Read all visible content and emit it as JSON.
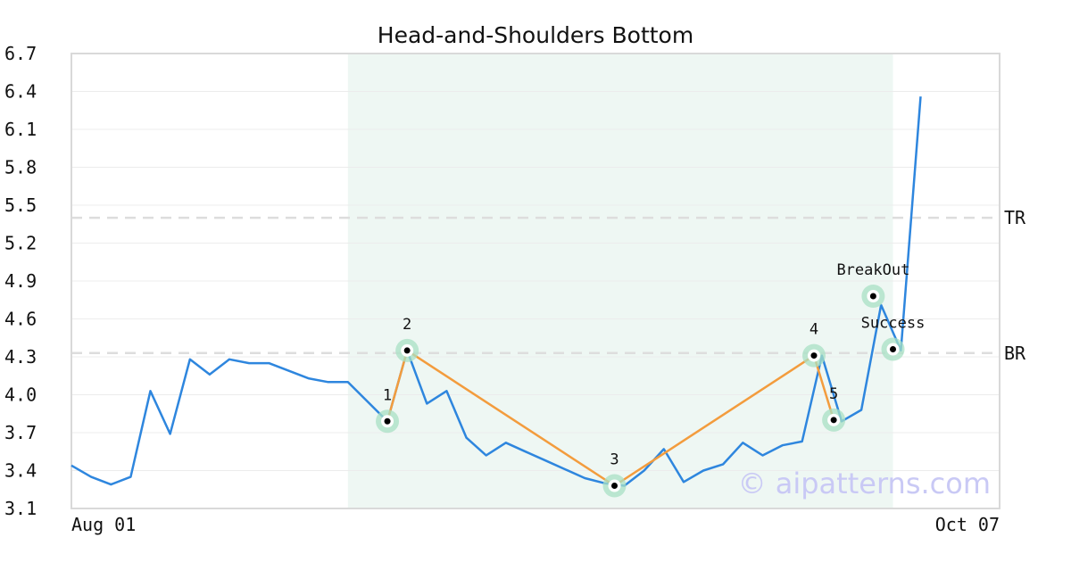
{
  "chart_data": {
    "type": "line",
    "title": "Head-and-Shoulders Bottom",
    "xlabel": "",
    "ylabel": "",
    "x_tick_labels": [
      "Aug 01",
      "Oct 07"
    ],
    "y_ticks": [
      "3.1",
      "3.4",
      "3.7",
      "4.0",
      "4.3",
      "4.6",
      "4.9",
      "5.2",
      "5.5",
      "5.8",
      "6.1",
      "6.4",
      "6.7"
    ],
    "ylim": [
      3.1,
      6.7
    ],
    "xlim": [
      0,
      47
    ],
    "grid": "horizontal",
    "series": [
      {
        "color": "#2e86de",
        "points": [
          [
            0,
            3.44
          ],
          [
            1,
            3.35
          ],
          [
            2,
            3.29
          ],
          [
            3,
            3.35
          ],
          [
            4,
            4.03
          ],
          [
            5,
            3.69
          ],
          [
            6,
            4.28
          ],
          [
            7,
            4.16
          ],
          [
            8,
            4.28
          ],
          [
            9,
            4.25
          ],
          [
            10,
            4.25
          ],
          [
            11,
            4.19
          ],
          [
            12,
            4.13
          ],
          [
            13,
            4.1
          ],
          [
            14,
            4.1
          ],
          [
            16,
            3.79
          ],
          [
            17,
            4.35
          ],
          [
            18,
            3.93
          ],
          [
            19,
            4.03
          ],
          [
            20,
            3.66
          ],
          [
            21,
            3.52
          ],
          [
            22,
            3.62
          ],
          [
            23,
            3.55
          ],
          [
            24,
            3.48
          ],
          [
            25,
            3.41
          ],
          [
            26,
            3.34
          ],
          [
            27,
            3.3
          ],
          [
            28,
            3.28
          ],
          [
            29,
            3.4
          ],
          [
            30,
            3.57
          ],
          [
            31,
            3.31
          ],
          [
            32,
            3.4
          ],
          [
            33,
            3.45
          ],
          [
            34,
            3.62
          ],
          [
            35,
            3.52
          ],
          [
            36,
            3.6
          ],
          [
            37,
            3.63
          ],
          [
            38,
            4.31
          ],
          [
            39,
            3.79
          ],
          [
            40,
            3.88
          ],
          [
            41,
            4.71
          ],
          [
            42,
            4.35
          ],
          [
            43,
            6.36
          ]
        ]
      }
    ],
    "pattern_lines": {
      "color": "#f39c3d",
      "points": [
        [
          16,
          3.79
        ],
        [
          17,
          4.35
        ],
        [
          27.5,
          3.28
        ],
        [
          37.6,
          4.31
        ],
        [
          38.6,
          3.8
        ]
      ]
    },
    "pattern_points": [
      {
        "label": "1",
        "x": 16,
        "y": 3.79
      },
      {
        "label": "2",
        "x": 17,
        "y": 4.35
      },
      {
        "label": "3",
        "x": 27.5,
        "y": 3.28
      },
      {
        "label": "4",
        "x": 37.6,
        "y": 4.31
      },
      {
        "label": "5",
        "x": 38.6,
        "y": 3.8
      },
      {
        "label": "BreakOut",
        "x": 40.6,
        "y": 4.78
      },
      {
        "label": "Success",
        "x": 41.6,
        "y": 4.36
      }
    ],
    "reference_lines": [
      {
        "label": "TR",
        "y": 5.4
      },
      {
        "label": "BR",
        "y": 4.33
      }
    ],
    "highlight_range": {
      "x_start": 14,
      "x_end": 41.6
    },
    "colors": {
      "line": "#2e86de",
      "pattern": "#f39c3d",
      "marker_halo": "#a8e0c4",
      "highlight": "#eef7f3",
      "reference": "#dddddd",
      "grid": "#ececec"
    }
  },
  "watermark": "© aipatterns.com"
}
